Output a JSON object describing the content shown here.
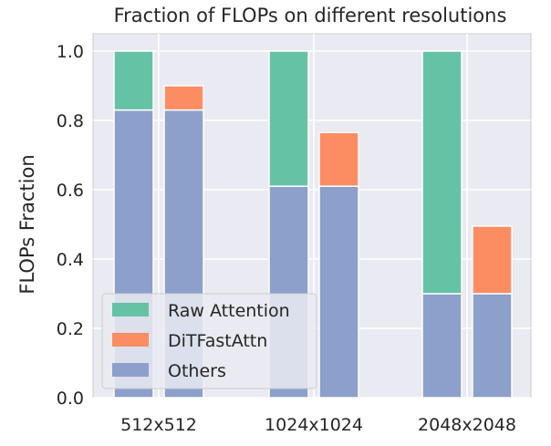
{
  "chart_data": {
    "type": "bar",
    "stacked": true,
    "title": "Fraction of FLOPs on different resolutions",
    "xlabel": "",
    "ylabel": "FLOPs Fraction",
    "ylim": [
      0,
      1.05
    ],
    "yticks": [
      "0.0",
      "0.2",
      "0.4",
      "0.6",
      "0.8",
      "1.0"
    ],
    "ytick_values": [
      0,
      0.2,
      0.4,
      0.6,
      0.8,
      1.0
    ],
    "categories": [
      "512x512",
      "1024x1024",
      "2048x2048"
    ],
    "grid": true,
    "legend_position": "lower-left",
    "colors": {
      "Raw Attention": "#66c2a5",
      "DiTFastAttn": "#fc8d62",
      "Others": "#8da0cb"
    },
    "legend": [
      "Raw Attention",
      "DiTFastAttn",
      "Others"
    ],
    "bars": [
      {
        "category": "512x512",
        "position": "left",
        "segments": [
          {
            "series": "Others",
            "value": 0.83
          },
          {
            "series": "Raw Attention",
            "value": 0.17
          }
        ]
      },
      {
        "category": "512x512",
        "position": "right",
        "segments": [
          {
            "series": "Others",
            "value": 0.83
          },
          {
            "series": "DiTFastAttn",
            "value": 0.07
          }
        ]
      },
      {
        "category": "1024x1024",
        "position": "left",
        "segments": [
          {
            "series": "Others",
            "value": 0.61
          },
          {
            "series": "Raw Attention",
            "value": 0.39
          }
        ]
      },
      {
        "category": "1024x1024",
        "position": "right",
        "segments": [
          {
            "series": "Others",
            "value": 0.61
          },
          {
            "series": "DiTFastAttn",
            "value": 0.155
          }
        ]
      },
      {
        "category": "2048x2048",
        "position": "left",
        "segments": [
          {
            "series": "Others",
            "value": 0.3
          },
          {
            "series": "Raw Attention",
            "value": 0.7
          }
        ]
      },
      {
        "category": "2048x2048",
        "position": "right",
        "segments": [
          {
            "series": "Others",
            "value": 0.3
          },
          {
            "series": "DiTFastAttn",
            "value": 0.195
          }
        ]
      }
    ]
  }
}
